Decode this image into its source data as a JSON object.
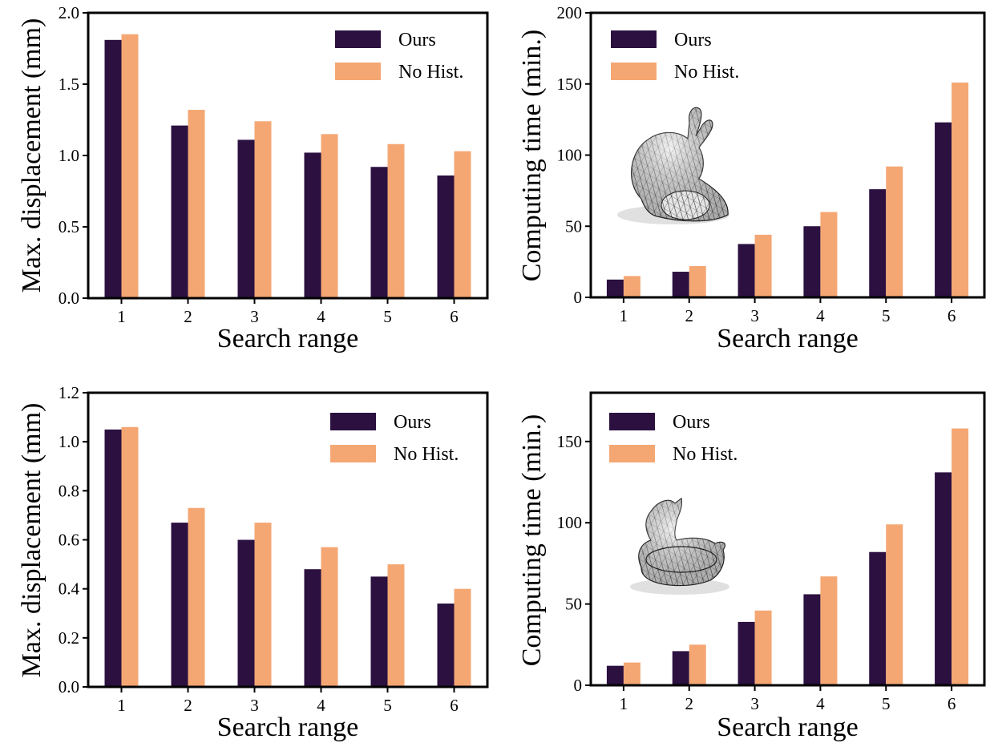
{
  "colors": {
    "ours": "#2b1040",
    "no_hist": "#f5a773",
    "axis": "#000000",
    "mesh_stroke": "#2a2a2a"
  },
  "icons": [
    "bunny-mesh-icon",
    "duck-mesh-icon"
  ],
  "chart_data": [
    {
      "type": "bar",
      "categories": [
        "1",
        "2",
        "3",
        "4",
        "5",
        "6"
      ],
      "series": [
        {
          "name": "Ours",
          "values": [
            1.81,
            1.21,
            1.11,
            1.02,
            0.92,
            0.86
          ]
        },
        {
          "name": "No Hist.",
          "values": [
            1.85,
            1.32,
            1.24,
            1.15,
            1.08,
            1.03
          ]
        }
      ],
      "xlabel": "Search range",
      "ylabel": "Max. displacement (mm)",
      "ylim": [
        0,
        2.0
      ],
      "yticks": [
        0.0,
        0.5,
        1.0,
        1.5,
        2.0
      ],
      "ytick_labels": [
        "0.0",
        "0.5",
        "1.0",
        "1.5",
        "2.0"
      ],
      "legend": "top-right",
      "grid": false
    },
    {
      "type": "bar",
      "categories": [
        "1",
        "2",
        "3",
        "4",
        "5",
        "6"
      ],
      "series": [
        {
          "name": "Ours",
          "values": [
            12.5,
            18,
            37.5,
            50,
            76,
            123
          ]
        },
        {
          "name": "No Hist.",
          "values": [
            15,
            22,
            44,
            60,
            92,
            151
          ]
        }
      ],
      "xlabel": "Search range",
      "ylabel": "Computing time (min.)",
      "ylim": [
        0,
        200
      ],
      "yticks": [
        0,
        50,
        100,
        150,
        200
      ],
      "ytick_labels": [
        "0",
        "50",
        "100",
        "150",
        "200"
      ],
      "legend": "top-left",
      "grid": false,
      "inset_icon": "bunny-mesh-icon"
    },
    {
      "type": "bar",
      "categories": [
        "1",
        "2",
        "3",
        "4",
        "5",
        "6"
      ],
      "series": [
        {
          "name": "Ours",
          "values": [
            1.05,
            0.67,
            0.6,
            0.48,
            0.45,
            0.34
          ]
        },
        {
          "name": "No Hist.",
          "values": [
            1.06,
            0.73,
            0.67,
            0.57,
            0.5,
            0.4
          ]
        }
      ],
      "xlabel": "Search range",
      "ylabel": "Max. displacement (mm)",
      "ylim": [
        0,
        1.2
      ],
      "yticks": [
        0.0,
        0.2,
        0.4,
        0.6,
        0.8,
        1.0,
        1.2
      ],
      "ytick_labels": [
        "0.0",
        "0.2",
        "0.4",
        "0.6",
        "0.8",
        "1.0",
        "1.2"
      ],
      "legend": "top-right",
      "grid": false
    },
    {
      "type": "bar",
      "categories": [
        "1",
        "2",
        "3",
        "4",
        "5",
        "6"
      ],
      "series": [
        {
          "name": "Ours",
          "values": [
            12,
            21,
            39,
            56,
            82,
            131
          ]
        },
        {
          "name": "No Hist.",
          "values": [
            14,
            25,
            46,
            67,
            99,
            158
          ]
        }
      ],
      "xlabel": "Search range",
      "ylabel": "Computing time (min.)",
      "ylim": [
        0,
        180
      ],
      "yticks": [
        0,
        50,
        100,
        150
      ],
      "ytick_labels": [
        "0",
        "50",
        "100",
        "150"
      ],
      "legend": "top-left",
      "grid": false,
      "inset_icon": "duck-mesh-icon"
    }
  ]
}
